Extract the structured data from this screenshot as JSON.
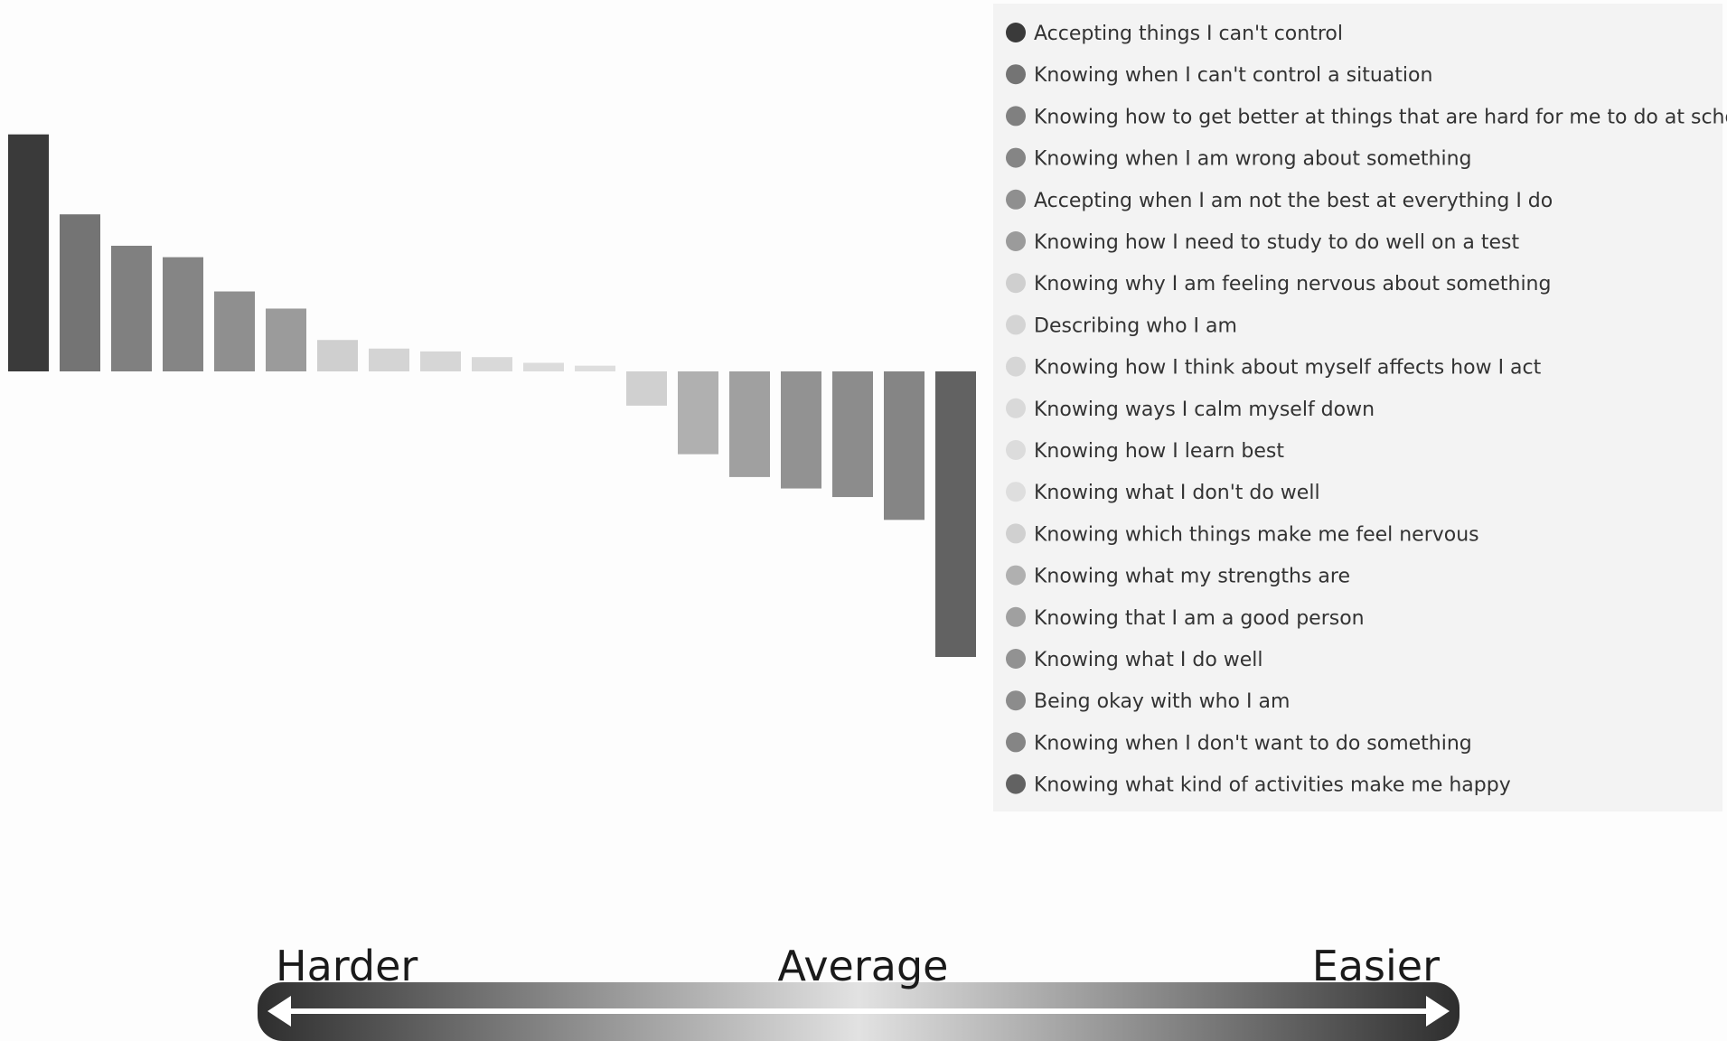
{
  "chart_data": {
    "type": "bar",
    "categories": [
      "Accepting things I can't control",
      "Knowing when I can't control a situation",
      "Knowing how to get better at things that are hard for me to do at school",
      "Knowing when I am wrong about something",
      "Accepting when I am not the best at everything I do",
      "Knowing how I need to study to do well on a test",
      "Knowing why I am feeling nervous about something",
      "Describing who I am",
      "Knowing how I think about myself affects how I act",
      "Knowing ways I calm myself down",
      "Knowing how I learn best",
      "Knowing what I don't do well",
      "Knowing which things make me feel nervous",
      "Knowing what my strengths are",
      "Knowing that I am a good person",
      "Knowing what I do well",
      "Being okay with who I am",
      "Knowing when I don't want to do something",
      "Knowing what kind of activities make me happy"
    ],
    "values": [
      0.83,
      0.55,
      0.44,
      0.4,
      0.28,
      0.22,
      0.11,
      0.08,
      0.07,
      0.05,
      0.03,
      0.02,
      -0.12,
      -0.29,
      -0.37,
      -0.41,
      -0.44,
      -0.52,
      -1.0
    ],
    "colors": [
      "#3a3a3a",
      "#747474",
      "#808080",
      "#858585",
      "#8f8f8f",
      "#9b9b9b",
      "#cfcfcf",
      "#d4d4d4",
      "#d6d6d6",
      "#d9d9d9",
      "#dcdcdc",
      "#dedede",
      "#d0d0d0",
      "#b0b0b0",
      "#a0a0a0",
      "#929292",
      "#8c8c8c",
      "#858585",
      "#626262"
    ],
    "legend_position": "right",
    "grid": false
  },
  "scale": {
    "left_label": "Harder",
    "middle_label": "Average",
    "right_label": "Easier"
  }
}
